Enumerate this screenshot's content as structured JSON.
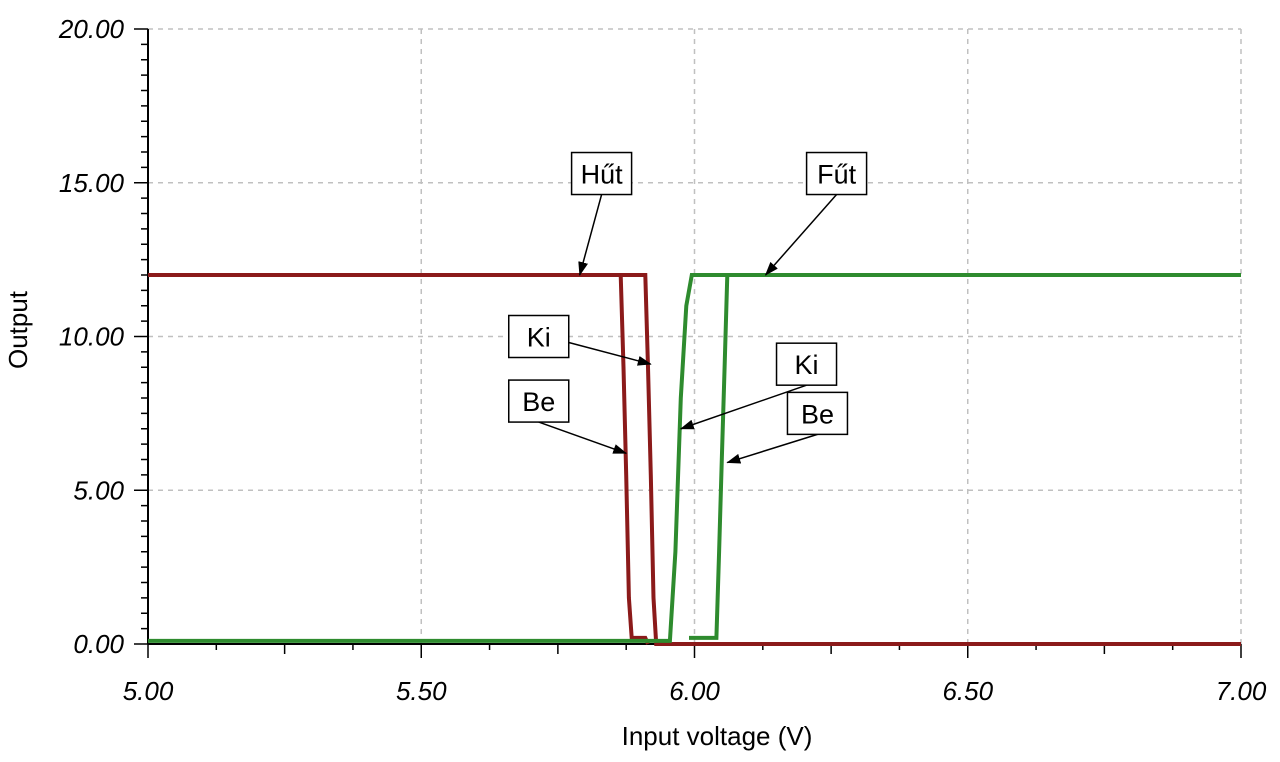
{
  "chart_data": {
    "type": "line",
    "title": "",
    "xlabel": "Input voltage (V)",
    "ylabel": "Output",
    "xlim": [
      5.0,
      7.0
    ],
    "ylim": [
      0,
      20
    ],
    "x_ticks": [
      "5.00",
      "5.50",
      "6.00",
      "6.50",
      "7.00"
    ],
    "y_ticks": [
      "0.00",
      "5.00",
      "10.00",
      "15.00",
      "20.00"
    ],
    "grid": true,
    "series": [
      {
        "color": "#8b1a1a",
        "points": [
          [
            5.0,
            12.0
          ],
          [
            5.91,
            12.0
          ],
          [
            5.915,
            9.0
          ],
          [
            5.92,
            5.5
          ],
          [
            5.925,
            1.5
          ],
          [
            5.93,
            0.0
          ],
          [
            7.0,
            0.0
          ]
        ]
      },
      {
        "color": "#8b1a1a",
        "points": [
          [
            5.865,
            12.0
          ],
          [
            5.87,
            9.0
          ],
          [
            5.875,
            5.5
          ],
          [
            5.88,
            1.5
          ],
          [
            5.885,
            0.2
          ],
          [
            5.91,
            0.2
          ],
          [
            5.915,
            0.0
          ]
        ]
      },
      {
        "color": "#2e8b2e",
        "points": [
          [
            5.0,
            0.1
          ],
          [
            5.955,
            0.1
          ],
          [
            5.965,
            3.0
          ],
          [
            5.975,
            8.0
          ],
          [
            5.985,
            11.0
          ],
          [
            5.995,
            12.0
          ],
          [
            7.0,
            12.0
          ]
        ]
      },
      {
        "color": "#2e8b2e",
        "points": [
          [
            5.99,
            0.2
          ],
          [
            6.04,
            0.2
          ],
          [
            6.045,
            3.0
          ],
          [
            6.05,
            6.0
          ],
          [
            6.055,
            9.0
          ],
          [
            6.06,
            12.0
          ]
        ]
      }
    ],
    "annotations": [
      {
        "id": "hut",
        "text": "Hűt",
        "box": [
          5.83,
          15.3
        ],
        "target": [
          5.79,
          12.0
        ]
      },
      {
        "id": "fut",
        "text": "Fűt",
        "box": [
          6.26,
          15.3
        ],
        "target": [
          6.13,
          12.0
        ]
      },
      {
        "id": "ki-left",
        "text": "Ki",
        "box": [
          5.715,
          10.0
        ],
        "target": [
          5.92,
          9.1
        ]
      },
      {
        "id": "be-left",
        "text": "Be",
        "box": [
          5.715,
          7.9
        ],
        "target": [
          5.875,
          6.2
        ]
      },
      {
        "id": "ki-right",
        "text": "Ki",
        "box": [
          6.205,
          9.1
        ],
        "target": [
          5.975,
          7.0
        ]
      },
      {
        "id": "be-right",
        "text": "Be",
        "box": [
          6.225,
          7.5
        ],
        "target": [
          6.06,
          5.9
        ]
      }
    ]
  }
}
